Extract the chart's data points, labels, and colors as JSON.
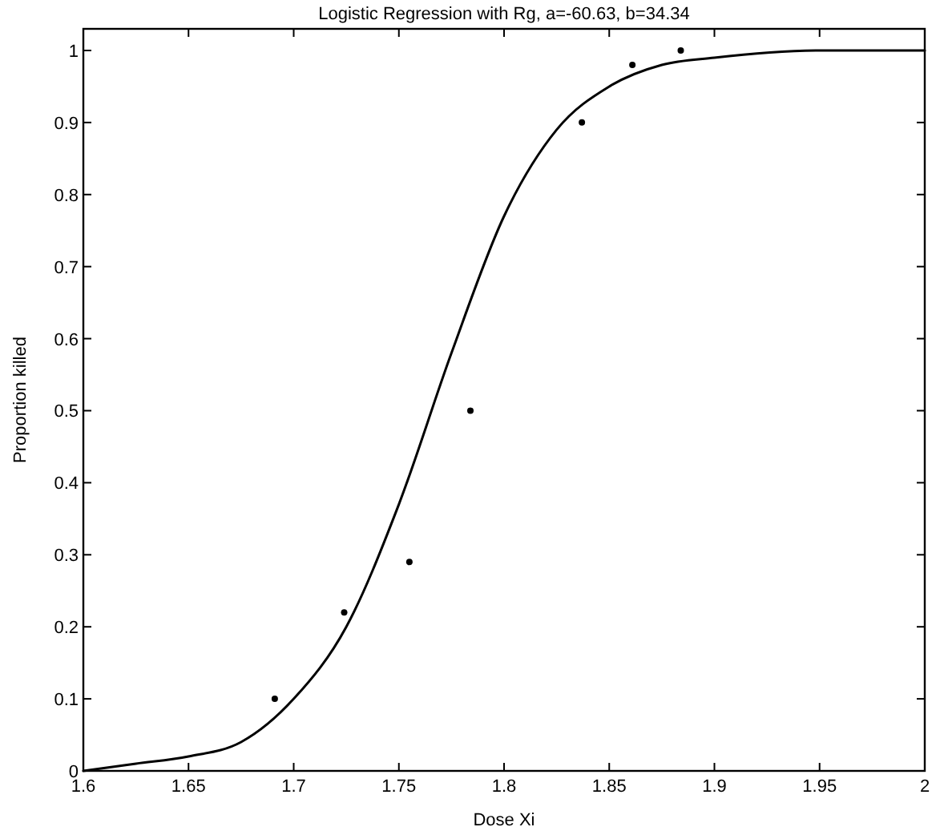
{
  "chart_data": {
    "type": "scatter",
    "title": "Logistic Regression with Rg, a=-60.63, b=34.34",
    "xlabel": "Dose Xi",
    "ylabel": "Proportion killed",
    "xlim": [
      1.6,
      2
    ],
    "xticks": [
      1.6,
      1.65,
      1.7,
      1.75,
      1.8,
      1.85,
      1.9,
      1.95,
      2
    ],
    "ylim": [
      0,
      1.03
    ],
    "yticks": [
      0,
      0.1,
      0.2,
      0.3,
      0.4,
      0.5,
      0.6,
      0.7,
      0.8,
      0.9,
      1
    ],
    "grid": false,
    "marker": "circle",
    "series": [
      {
        "color": "#000000",
        "x": [
          1.691,
          1.724,
          1.755,
          1.784,
          1.837,
          1.861,
          1.884
        ],
        "values": [
          0.1,
          0.22,
          0.29,
          0.5,
          0.9,
          0.98,
          1.0
        ]
      },
      {
        "type": "line",
        "color": "#000000",
        "line_style": "solid",
        "marker": "none",
        "x": [
          1.6,
          1.625,
          1.65,
          1.675,
          1.7,
          1.725,
          1.75,
          1.775,
          1.8,
          1.825,
          1.85,
          1.875,
          1.9,
          1.95,
          2
        ],
        "values": [
          0.0,
          0.01,
          0.02,
          0.04,
          0.1,
          0.2,
          0.37,
          0.58,
          0.77,
          0.89,
          0.95,
          0.98,
          0.99,
          1.0,
          1.0
        ]
      }
    ]
  }
}
